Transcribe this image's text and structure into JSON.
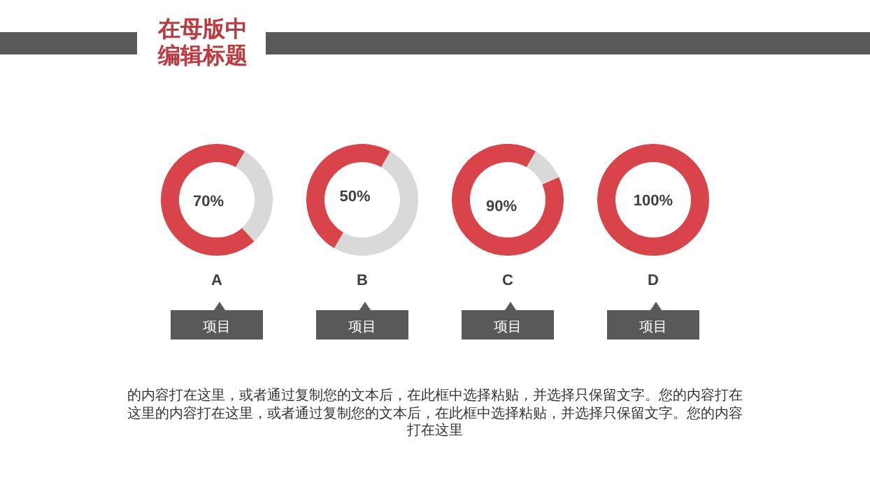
{
  "chart_data": [
    {
      "type": "other",
      "title": "在母版中编辑标题",
      "annotations": [
        "的内容打在这里，或者通过复制您的文本后，在此框中选择粘贴，并选择只保留文字。您的内容打在这里的内容打在这里，或者通过复制您的文本后，在此框中选择粘贴，并选择只保留文字。您的内容打在这里"
      ]
    },
    {
      "type": "donut",
      "categories": [
        null,
        null
      ],
      "values": [
        70,
        30
      ],
      "colors": [
        "#d9434a",
        "#d9d9d9"
      ],
      "value_labels": [
        "70%",
        null
      ],
      "xlabel": "A",
      "annotations": [
        "项目"
      ]
    },
    {
      "type": "donut",
      "categories": [
        null,
        null
      ],
      "values": [
        50,
        50
      ],
      "colors": [
        "#d9434a",
        "#d9d9d9"
      ],
      "value_labels": [
        "50%",
        null
      ],
      "xlabel": "B",
      "annotations": [
        "项目"
      ]
    },
    {
      "type": "donut",
      "categories": [
        null,
        null
      ],
      "values": [
        90,
        10
      ],
      "colors": [
        "#d9434a",
        "#d9d9d9"
      ],
      "value_labels": [
        "90%",
        null
      ],
      "xlabel": "C",
      "annotations": [
        "项目"
      ]
    },
    {
      "type": "donut",
      "categories": [
        null
      ],
      "values": [
        100
      ],
      "colors": [
        "#d9434a"
      ],
      "value_labels": [
        "100%"
      ],
      "xlabel": "D",
      "annotations": [
        "项目"
      ]
    }
  ]
}
